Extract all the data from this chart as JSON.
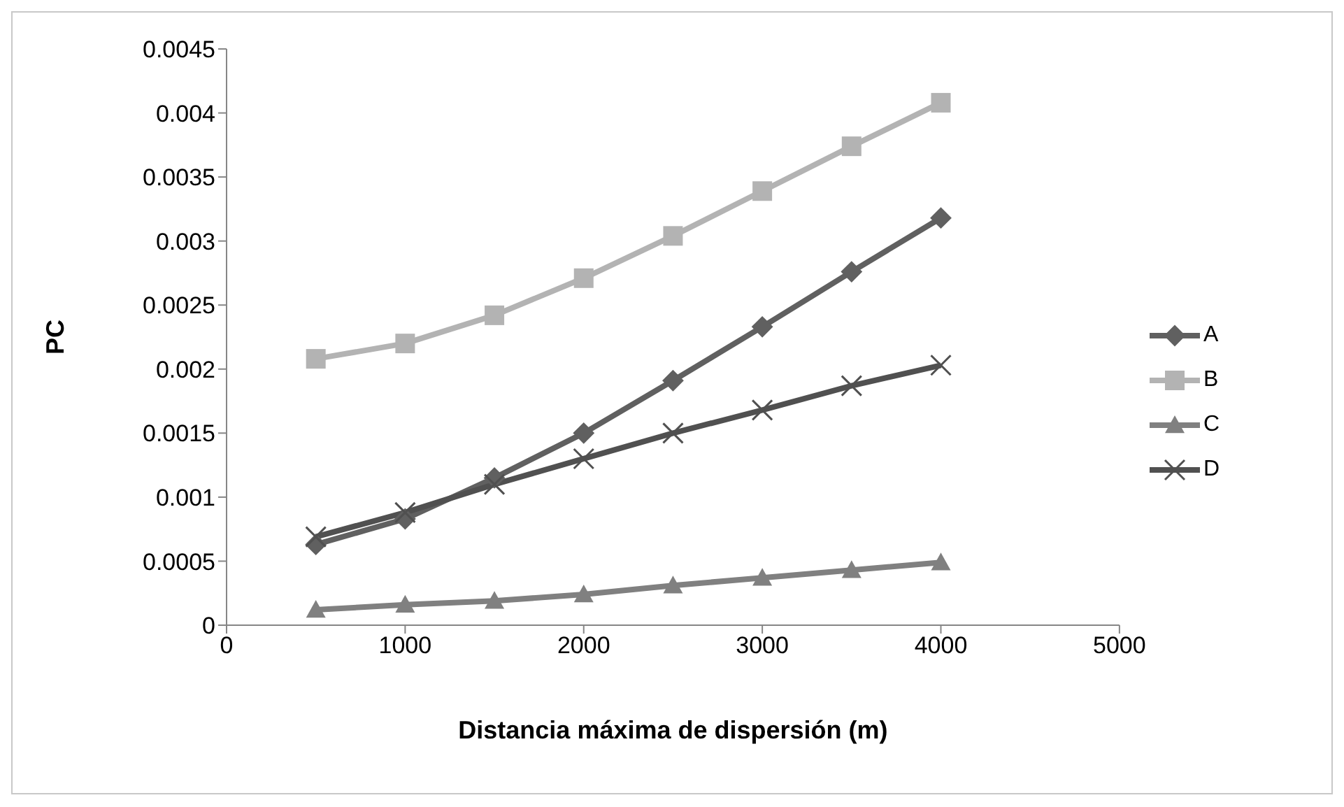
{
  "chart_data": {
    "type": "line",
    "xlabel": "Distancia máxima de dispersión (m)",
    "ylabel": "PC",
    "x": [
      500,
      1000,
      1500,
      2000,
      2500,
      3000,
      3500,
      4000
    ],
    "xlim": [
      0,
      5000
    ],
    "xticks": [
      0,
      1000,
      2000,
      3000,
      4000,
      5000
    ],
    "ylim": [
      0,
      0.0045
    ],
    "yticks": [
      0,
      0.0005,
      0.001,
      0.0015,
      0.002,
      0.0025,
      0.003,
      0.0035,
      0.004,
      0.0045
    ],
    "grid": false,
    "legend": "right",
    "line_style": "solid",
    "series": [
      {
        "name": "A",
        "color": "#606060",
        "marker": "diamond",
        "values": [
          0.00063,
          0.00083,
          0.00115,
          0.0015,
          0.00191,
          0.00233,
          0.00276,
          0.00318
        ]
      },
      {
        "name": "B",
        "color": "#b3b3b3",
        "marker": "square",
        "values": [
          0.00208,
          0.0022,
          0.00242,
          0.00271,
          0.00304,
          0.00339,
          0.00374,
          0.00408
        ]
      },
      {
        "name": "C",
        "color": "#808080",
        "marker": "triangle",
        "values": [
          0.00012,
          0.00016,
          0.00019,
          0.00024,
          0.00031,
          0.00037,
          0.00043,
          0.00049
        ]
      },
      {
        "name": "D",
        "color": "#505050",
        "marker": "cross",
        "values": [
          0.00069,
          0.00088,
          0.0011,
          0.0013,
          0.0015,
          0.00168,
          0.00187,
          0.00203
        ]
      }
    ]
  }
}
